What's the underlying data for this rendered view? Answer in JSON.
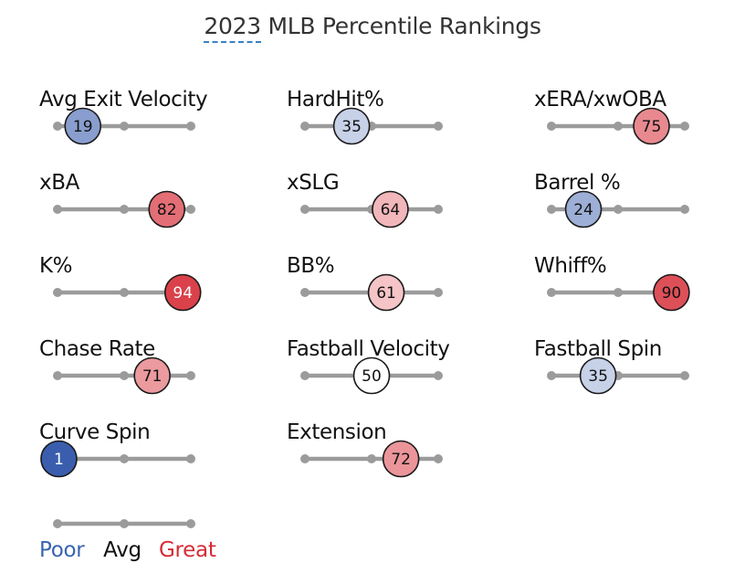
{
  "title_parts": {
    "underlined": "2023",
    "rest": " MLB Percentile Rankings"
  },
  "chart_data": {
    "type": "percentile-slider",
    "title": "2023 MLB Percentile Rankings",
    "scale": {
      "min": 0,
      "mid": 50,
      "max": 100
    },
    "metrics": [
      {
        "name": "Avg Exit Velocity",
        "percentile": 19
      },
      {
        "name": "HardHit%",
        "percentile": 35
      },
      {
        "name": "xERA/xwOBA",
        "percentile": 75
      },
      {
        "name": "xBA",
        "percentile": 82
      },
      {
        "name": "xSLG",
        "percentile": 64
      },
      {
        "name": "Barrel %",
        "percentile": 24
      },
      {
        "name": "K%",
        "percentile": 94
      },
      {
        "name": "BB%",
        "percentile": 61
      },
      {
        "name": "Whiff%",
        "percentile": 90
      },
      {
        "name": "Chase Rate",
        "percentile": 71
      },
      {
        "name": "Fastball Velocity",
        "percentile": 50
      },
      {
        "name": "Fastball Spin",
        "percentile": 35
      },
      {
        "name": "Curve Spin",
        "percentile": 1
      },
      {
        "name": "Extension",
        "percentile": 72
      }
    ],
    "legend": {
      "poor": {
        "label": "Poor",
        "color": "#3a64b0"
      },
      "avg": {
        "label": "Avg",
        "color": "#111111"
      },
      "great": {
        "label": "Great",
        "color": "#d62b35"
      }
    }
  }
}
